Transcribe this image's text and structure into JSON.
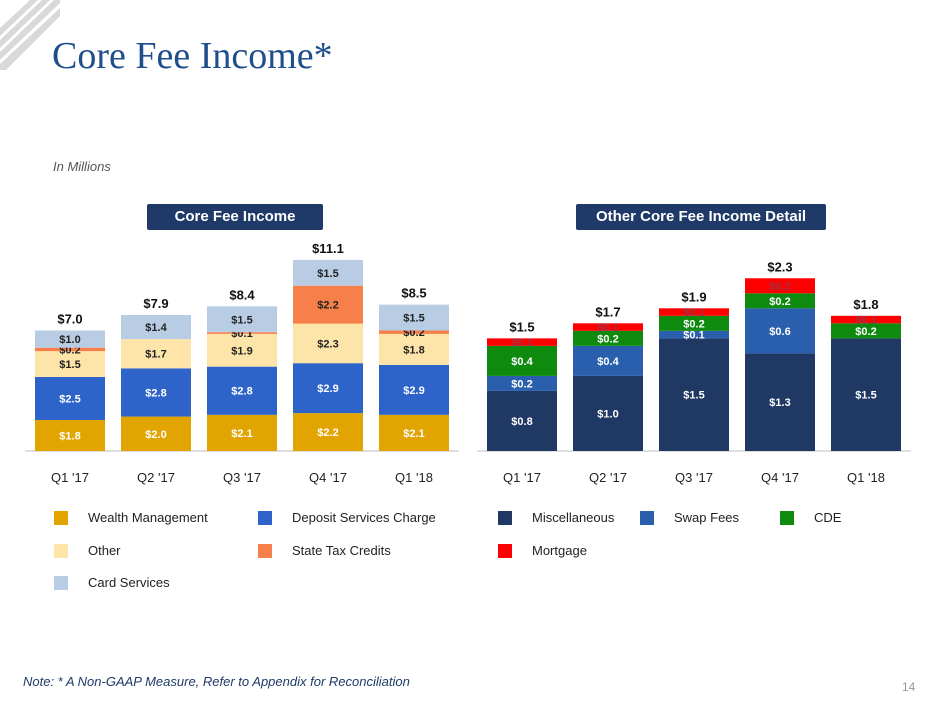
{
  "title": "Core Fee Income*",
  "subtitle": "In Millions",
  "note": "Note: * A Non-GAAP Measure, Refer to Appendix for Reconciliation",
  "page_number": "14",
  "colors": {
    "title": "#1f4e8c",
    "pill": "#1f3a68",
    "logo": "#d9d9d9"
  },
  "chart_data": [
    {
      "type": "bar",
      "stacked": true,
      "title": "Core Fee Income",
      "categories": [
        "Q1 '17",
        "Q2 '17",
        "Q3 '17",
        "Q4 '17",
        "Q1 '18"
      ],
      "totals": [
        "$7.0",
        "$7.9",
        "$8.4",
        "$11.1",
        "$8.5"
      ],
      "total_values": [
        7.0,
        7.9,
        8.4,
        11.1,
        8.5
      ],
      "ylim": [
        0,
        11.5
      ],
      "grid": false,
      "series": [
        {
          "name": "Wealth Management",
          "color": "#e1a400",
          "text_color": "#ffffff",
          "values": [
            1.8,
            2.0,
            2.1,
            2.2,
            2.1
          ],
          "labels": [
            "$1.8",
            "$2.0",
            "$2.1",
            "$2.2",
            "$2.1"
          ]
        },
        {
          "name": "Deposit Services Charge",
          "color": "#2e64c9",
          "text_color": "#ffffff",
          "values": [
            2.5,
            2.8,
            2.8,
            2.9,
            2.9
          ],
          "labels": [
            "$2.5",
            "$2.8",
            "$2.8",
            "$2.9",
            "$2.9"
          ]
        },
        {
          "name": "Other",
          "color": "#fde4a8",
          "text_color": "#222222",
          "values": [
            1.5,
            1.7,
            1.9,
            2.3,
            1.8
          ],
          "labels": [
            "$1.5",
            "$1.7",
            "$1.9",
            "$2.3",
            "$1.8"
          ]
        },
        {
          "name": "State Tax Credits",
          "color": "#f7804a",
          "text_color": "#222222",
          "values": [
            0.2,
            0.0,
            0.1,
            2.2,
            0.2
          ],
          "labels": [
            "$0.2",
            "",
            "$0.1",
            "$2.2",
            "$0.2"
          ]
        },
        {
          "name": "Card Services",
          "color": "#b8cce4",
          "text_color": "#222222",
          "values": [
            1.0,
            1.4,
            1.5,
            1.5,
            1.5
          ],
          "labels": [
            "$1.0",
            "$1.4",
            "$1.5",
            "$1.5",
            "$1.5"
          ]
        }
      ]
    },
    {
      "type": "bar",
      "stacked": true,
      "title": "Other Core Fee Income Detail",
      "categories": [
        "Q1 '17",
        "Q2 '17",
        "Q3 '17",
        "Q4 '17",
        "Q1 '18"
      ],
      "totals": [
        "$1.5",
        "$1.7",
        "$1.9",
        "$2.3",
        "$1.8"
      ],
      "total_values": [
        1.5,
        1.7,
        1.9,
        2.3,
        1.8
      ],
      "ylim": [
        0,
        2.45
      ],
      "grid": false,
      "series": [
        {
          "name": "Miscellaneous",
          "color": "#1f3864",
          "text_color": "#ffffff",
          "values": [
            0.8,
            1.0,
            1.5,
            1.3,
            1.5
          ],
          "labels": [
            "$0.8",
            "$1.0",
            "$1.5",
            "$1.3",
            "$1.5"
          ]
        },
        {
          "name": "Swap Fees",
          "color": "#2a5fad",
          "text_color": "#ffffff",
          "values": [
            0.2,
            0.4,
            0.1,
            0.6,
            0.0
          ],
          "labels": [
            "$0.2",
            "$0.4",
            "$0.1",
            "$0.6",
            ""
          ]
        },
        {
          "name": "CDE",
          "color": "#0e8a0e",
          "text_color": "#ffffff",
          "values": [
            0.4,
            0.2,
            0.2,
            0.2,
            0.2
          ],
          "labels": [
            "$0.4",
            "$0.2",
            "$0.2",
            "$0.2",
            "$0.2"
          ]
        },
        {
          "name": "Mortgage",
          "color": "#ff0000",
          "text_color": "#a03040",
          "values": [
            0.1,
            0.1,
            0.1,
            0.2,
            0.1
          ],
          "labels": [
            "$0.1",
            "$0.1",
            "$0.1",
            "$0.2",
            "$0.1"
          ]
        }
      ]
    }
  ]
}
